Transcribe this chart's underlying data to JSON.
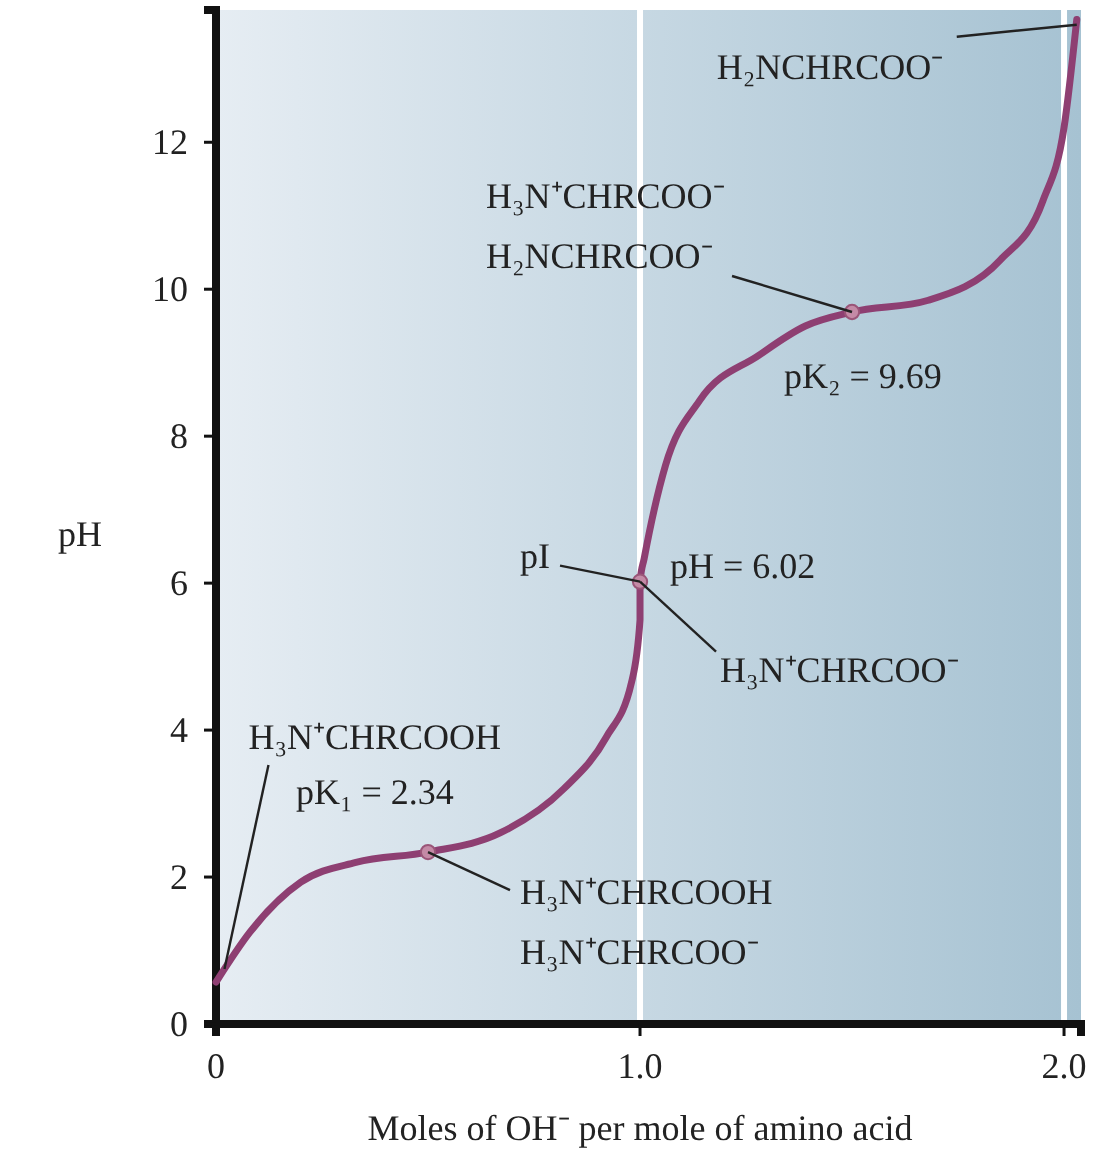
{
  "chart_data": {
    "type": "line",
    "xlabel": "Moles of OH⁻ per mole of amino acid",
    "ylabel": "pH",
    "xlim": [
      0,
      2.04
    ],
    "ylim": [
      0,
      13.8
    ],
    "xticks": [
      0,
      {
        "value": 1,
        "label": "1.0"
      },
      {
        "value": 2,
        "label": "2.0"
      }
    ],
    "yticks": [
      0,
      2,
      4,
      6,
      8,
      10,
      12
    ],
    "ref_lines": [
      {
        "axis": "x",
        "value": 1,
        "color": "#ffffff"
      },
      {
        "axis": "x",
        "value": 2,
        "color": "#ffffff"
      }
    ],
    "series": [
      {
        "type": "line",
        "color": "#8e3f72",
        "marker": "none",
        "x": [
          0,
          0.08,
          0.2,
          0.33,
          0.5,
          0.67,
          0.82,
          0.92,
          0.98,
          1.0,
          1.0,
          1.01,
          1.06,
          1.14,
          1.28,
          1.39,
          1.5,
          1.68,
          1.85,
          1.95,
          2.0,
          2.03
        ],
        "values": [
          0.57,
          1.25,
          1.93,
          2.2,
          2.34,
          2.6,
          3.2,
          3.9,
          4.65,
          5.5,
          6.02,
          6.34,
          7.6,
          8.48,
          9.1,
          9.5,
          9.69,
          9.85,
          10.4,
          11.2,
          12.2,
          13.67
        ]
      },
      {
        "type": "scatter",
        "color": "#c48aa6",
        "marker": "circle",
        "x": [
          0.5,
          1.0,
          1.5
        ],
        "values": [
          2.34,
          6.02,
          9.69
        ]
      }
    ],
    "annotations": [
      {
        "text": "H₃N⁺CHRCOOH",
        "x": 0.02,
        "y": 0.75
      },
      {
        "text": "pK₁ = 2.34",
        "x": 0.5,
        "y": 2.34
      },
      {
        "text": "H₃N⁺CHRCOOH\nH₃N⁺CHRCOO⁻",
        "x": 0.5,
        "y": 2.34
      },
      {
        "text": "pI",
        "x": 1.0,
        "y": 6.02
      },
      {
        "text": "pH = 6.02",
        "x": 1.0,
        "y": 6.02
      },
      {
        "text": "H₃N⁺CHRCOO⁻",
        "x": 1.0,
        "y": 6.02
      },
      {
        "text": "H₃N⁺CHRCOO⁻\nH₂NCHRCOO⁻",
        "x": 1.5,
        "y": 9.69
      },
      {
        "text": "pK₂ = 9.69",
        "x": 1.5,
        "y": 9.69
      },
      {
        "text": "H₂NCHRCOO⁻",
        "x": 2.03,
        "y": 13.6
      }
    ]
  }
}
